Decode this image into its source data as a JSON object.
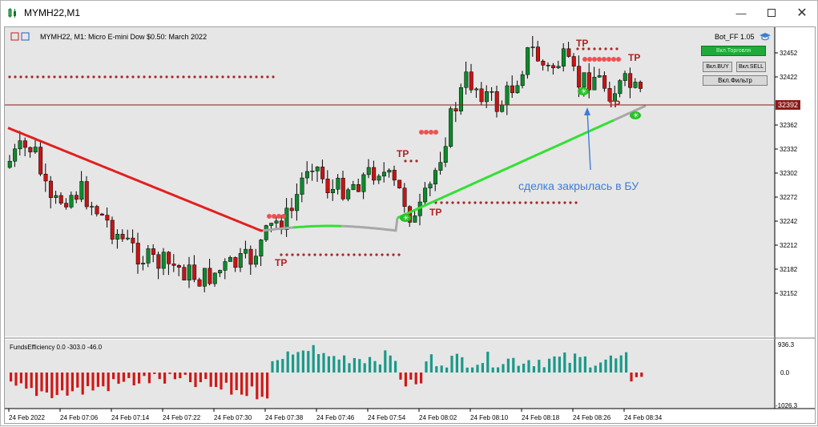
{
  "window": {
    "title": "MYMH22,M1",
    "controls": [
      "minimize",
      "maximize",
      "close"
    ]
  },
  "chart": {
    "header": "MYMH22, M1:  Micro E-mini Dow $0.50: March 2022",
    "current_price": "32392",
    "price_ticks": [
      "32452",
      "32422",
      "32392",
      "32362",
      "32332",
      "32302",
      "32272",
      "32242",
      "32212",
      "32182",
      "32152"
    ],
    "time_ticks": [
      "24 Feb 2022",
      "24 Feb 07:06",
      "24 Feb 07:14",
      "24 Feb 07:22",
      "24 Feb 07:30",
      "24 Feb 07:38",
      "24 Feb 07:46",
      "24 Feb 07:54",
      "24 Feb 08:02",
      "24 Feb 08:10",
      "24 Feb 08:18",
      "24 Feb 08:26",
      "24 Feb 08:34"
    ],
    "annotation": "сделка закрылась в БУ",
    "tp_label": "TP",
    "colors": {
      "bull": "#0e8a2c",
      "bear": "#c81414",
      "ma_down": "#e02020",
      "ma_neutral": "#a8a8a8",
      "ma_up": "#33e033",
      "level": "#a52a2a",
      "annotation": "#3b7dd8"
    }
  },
  "ea_panel": {
    "name": "Bot_FF",
    "version": "1.05",
    "status_button": "Вкл.Торговля",
    "buy_button": "Вкл.BUY",
    "sell_button": "Вкл.SELL",
    "filter_button": "Вкл.Фильтр"
  },
  "indicator": {
    "label": "FundsEfficiency 0.0 -303.0 -46.0",
    "scale_ticks": [
      "936.3",
      "0.0",
      "-1026.3"
    ]
  }
}
